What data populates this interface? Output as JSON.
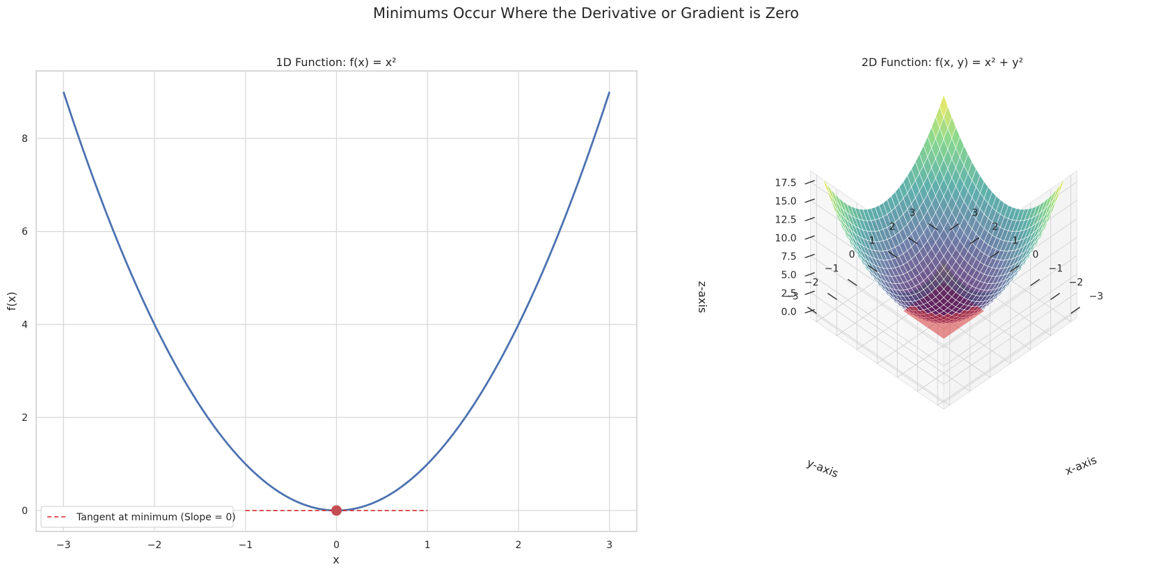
{
  "figure": {
    "suptitle": "Minimums Occur Where the Derivative or Gradient is Zero"
  },
  "chart_data": [
    {
      "type": "line",
      "title": "1D Function: f(x) = x²",
      "xlabel": "x",
      "ylabel": "f(x)",
      "xlim": [
        -3.3,
        3.3
      ],
      "ylim": [
        -0.45,
        9.45
      ],
      "xticks": [
        -3,
        -2,
        -1,
        0,
        1,
        2,
        3
      ],
      "xtick_labels": [
        "−3",
        "−2",
        "−1",
        "0",
        "1",
        "2",
        "3"
      ],
      "yticks": [
        0,
        2,
        4,
        6,
        8
      ],
      "ytick_labels": [
        "0",
        "2",
        "4",
        "6",
        "8"
      ],
      "grid": true,
      "series": [
        {
          "function": "x^2",
          "x_range": [
            -3,
            3
          ],
          "color": "#4c72b0"
        }
      ],
      "tangent": {
        "name": "Tangent at minimum (Slope = 0)",
        "x": [
          -1,
          1
        ],
        "y": [
          0,
          0
        ],
        "style": "dashed",
        "color": "#d62728"
      },
      "minimum_point": {
        "x": 0,
        "y": 0,
        "color": "#c44e52"
      },
      "legend": {
        "position": "lower-left",
        "entries": [
          "Tangent at minimum (Slope = 0)"
        ]
      }
    },
    {
      "type": "surface",
      "title": "2D Function: f(x, y) = x² + y²",
      "xlabel": "x-axis",
      "ylabel": "y-axis",
      "zlabel": "z-axis",
      "function": "x^2 + y^2",
      "x_range": [
        -3,
        3
      ],
      "y_range": [
        -3,
        3
      ],
      "xticks": [
        -3,
        -2,
        -1,
        0,
        1,
        2,
        3
      ],
      "xtick_labels": [
        "−3",
        "−2",
        "−1",
        "0",
        "1",
        "2",
        "3"
      ],
      "yticks": [
        -3,
        -2,
        -1,
        0,
        1,
        2,
        3
      ],
      "ytick_labels": [
        "−3",
        "−2",
        "−1",
        "0",
        "1",
        "2",
        "3"
      ],
      "zticks": [
        0,
        2.5,
        5,
        7.5,
        10,
        12.5,
        15,
        17.5
      ],
      "ztick_labels": [
        "0.0",
        "2.5",
        "5.0",
        "7.5",
        "10.0",
        "12.5",
        "15.0",
        "17.5"
      ],
      "colormap": [
        "#440154",
        "#3b528b",
        "#21918c",
        "#5ec962",
        "#fde725"
      ],
      "tangent_plane": {
        "z": 0,
        "x_range": [
          -1,
          1
        ],
        "y_range": [
          -1,
          1
        ],
        "color": "#d62728"
      }
    }
  ]
}
